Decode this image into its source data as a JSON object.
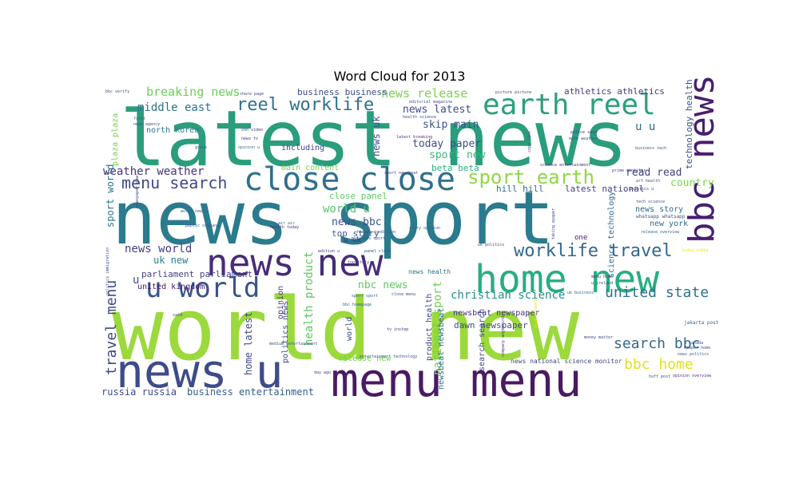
{
  "chart_data": {
    "type": "wordcloud",
    "title": "Word Cloud for 2013",
    "words": [
      {
        "text": "latest news",
        "color": "#2a9d7c"
      },
      {
        "text": "news sport",
        "color": "#2b7b8e"
      },
      {
        "text": "world new",
        "color": "#9bd93c"
      },
      {
        "text": "menu menu",
        "color": "#4a1a62"
      },
      {
        "text": "news u",
        "color": "#3d4c89"
      },
      {
        "text": "close close",
        "color": "#2e6f8e"
      },
      {
        "text": "home new",
        "color": "#28ae80"
      },
      {
        "text": "earth reel",
        "color": "#2ca07f"
      },
      {
        "text": "news new",
        "color": "#472c7a"
      },
      {
        "text": "bbc news",
        "color": "#481f70"
      },
      {
        "text": "u world",
        "color": "#3b528b"
      },
      {
        "text": "sport earth",
        "color": "#8fd744"
      },
      {
        "text": "reel worklife",
        "color": "#2c728e"
      },
      {
        "text": "menu search",
        "color": "#3e4a89"
      },
      {
        "text": "worklife travel",
        "color": "#31688e"
      },
      {
        "text": "united state",
        "color": "#2c728e"
      },
      {
        "text": "search bbc",
        "color": "#31688e"
      },
      {
        "text": "bbc home",
        "color": "#e0e31c"
      },
      {
        "text": "travel menu",
        "color": "#3e4989"
      },
      {
        "text": "christian science",
        "color": "#21908d"
      },
      {
        "text": "breaking news",
        "color": "#6ccd5a"
      },
      {
        "text": "news release",
        "color": "#7ad151"
      },
      {
        "text": "middle east",
        "color": "#2c728e"
      },
      {
        "text": "weather weather",
        "color": "#46337e"
      },
      {
        "text": "news world",
        "color": "#433e85"
      },
      {
        "text": "health product",
        "color": "#5ec962"
      },
      {
        "text": "national sport",
        "color": "#73d056"
      },
      {
        "text": "sport new",
        "color": "#35b779"
      },
      {
        "text": "today paper",
        "color": "#3d4e8a"
      },
      {
        "text": "news latest",
        "color": "#3e4c8a"
      },
      {
        "text": "skip main",
        "color": "#3c508b"
      },
      {
        "text": "news uk",
        "color": "#3a538b"
      },
      {
        "text": "read read",
        "color": "#414487"
      },
      {
        "text": "country",
        "color": "#7fd34e"
      },
      {
        "text": "world u",
        "color": "#52c569"
      },
      {
        "text": "news bbc",
        "color": "#3b528b"
      },
      {
        "text": "uk new",
        "color": "#26828e"
      },
      {
        "text": "nbc news",
        "color": "#5ec962"
      },
      {
        "text": "top story",
        "color": "#355f8d"
      },
      {
        "text": "close panel",
        "color": "#5ec962"
      },
      {
        "text": "hill hill",
        "color": "#2e6e8e"
      },
      {
        "text": "latest national",
        "color": "#404688"
      },
      {
        "text": "beta beta",
        "color": "#2ab07f"
      },
      {
        "text": "main content",
        "color": "#7ad151"
      },
      {
        "text": "including",
        "color": "#404588"
      },
      {
        "text": "business business",
        "color": "#3e4a89"
      },
      {
        "text": "athletics athletics",
        "color": "#46337e"
      },
      {
        "text": "technology health",
        "color": "#3b528b"
      },
      {
        "text": "news story",
        "color": "#31688e"
      },
      {
        "text": "new york",
        "color": "#2e6f8e"
      },
      {
        "text": "science technology",
        "color": "#2f6b8e"
      },
      {
        "text": "sport world",
        "color": "#2a768e"
      },
      {
        "text": "parliament parliament",
        "color": "#414487"
      },
      {
        "text": "united kingdom",
        "color": "#48186a"
      },
      {
        "text": "north korea",
        "color": "#2a788e"
      },
      {
        "text": "russia russia",
        "color": "#3e4c8a"
      },
      {
        "text": "business entertainment",
        "color": "#355e8d"
      },
      {
        "text": "home latest",
        "color": "#3e4a89"
      },
      {
        "text": "politics news",
        "color": "#3f4788"
      },
      {
        "text": "opinion",
        "color": "#443b84"
      },
      {
        "text": "world",
        "color": "#3b518b"
      },
      {
        "text": "newsbeat newsbeat",
        "color": "#2f6c8e"
      },
      {
        "text": "newsbeat newspaper",
        "color": "#46307e"
      },
      {
        "text": "dawn newspaper",
        "color": "#3c4f8a"
      },
      {
        "text": "search search",
        "color": "#3e4a89"
      },
      {
        "text": "product health",
        "color": "#3f4889"
      },
      {
        "text": "release new",
        "color": "#70cf57"
      },
      {
        "text": "news national science monitor",
        "color": "#404688"
      },
      {
        "text": "news health",
        "color": "#2b748e"
      },
      {
        "text": "skip content",
        "color": "#e5e419"
      },
      {
        "text": "one",
        "color": "#481a6c"
      },
      {
        "text": "u u",
        "color": "#31688e"
      },
      {
        "text": "u uk",
        "color": "#46307e"
      },
      {
        "text": "plaza plaza",
        "color": "#7ad151"
      },
      {
        "text": "u",
        "color": "#3b528b"
      },
      {
        "text": "panel close",
        "color": "#3a548c"
      },
      {
        "text": "sport sport",
        "color": "#355f8d"
      },
      {
        "text": "health condition",
        "color": "#365c8d"
      },
      {
        "text": "business sport",
        "color": "#3b528b"
      },
      {
        "text": "jakarta post",
        "color": "#355f8d"
      },
      {
        "text": "politics u",
        "color": "#46337e"
      },
      {
        "text": "tech science",
        "color": "#3b528b"
      },
      {
        "text": "whatsapp whatsapp",
        "color": "#3b528b"
      },
      {
        "text": "uk politics",
        "color": "#3e4a89"
      },
      {
        "text": "uk business",
        "color": "#2f6b8e"
      },
      {
        "text": "air air",
        "color": "#31688e"
      },
      {
        "text": "public company",
        "color": "#3b528b"
      },
      {
        "text": "health today",
        "color": "#46337e"
      },
      {
        "text": "story opinion",
        "color": "#355f8d"
      },
      {
        "text": "news agency",
        "color": "#3b528b"
      },
      {
        "text": "cnn video",
        "color": "#46337e"
      },
      {
        "text": "opinion u",
        "color": "#2f6c8e"
      },
      {
        "text": "share page",
        "color": "#3e4a89"
      },
      {
        "text": "sport newsbeat",
        "color": "#433e85"
      },
      {
        "text": "police said",
        "color": "#46337e"
      },
      {
        "text": "male weather",
        "color": "#3b528b"
      },
      {
        "text": "business tech",
        "color": "#355f8d"
      },
      {
        "text": "science entertainment",
        "color": "#46337e"
      },
      {
        "text": "prime minister",
        "color": "#3e4a89"
      },
      {
        "text": "art health",
        "color": "#3b528b"
      },
      {
        "text": "release overview",
        "color": "#355f8d"
      },
      {
        "text": "india india",
        "color": "#e5e419"
      },
      {
        "text": "u ireland",
        "color": "#3b528b"
      },
      {
        "text": "money matter",
        "color": "#3e4a89"
      },
      {
        "text": "epaper home",
        "color": "#3b528b"
      },
      {
        "text": "u canada",
        "color": "#3b528b"
      },
      {
        "text": "news politics",
        "color": "#355f8d"
      },
      {
        "text": "opinion overview",
        "color": "#46337e"
      },
      {
        "text": "huff post",
        "color": "#3b528b"
      },
      {
        "text": "close menu",
        "color": "#3e4a89"
      },
      {
        "text": "menu home",
        "color": "#46337e"
      },
      {
        "text": "bbc homepage",
        "color": "#31688e"
      },
      {
        "text": "entertainment technology",
        "color": "#3b528b"
      },
      {
        "text": "top story",
        "color": "#3b528b"
      },
      {
        "text": "edition u",
        "color": "#46337e"
      },
      {
        "text": "said",
        "color": "#3e4a89"
      },
      {
        "text": "world news",
        "color": "#355f8d"
      },
      {
        "text": "first",
        "color": "#3b528b"
      },
      {
        "text": "news tv",
        "color": "#46337e"
      },
      {
        "text": "newspaper dawn",
        "color": "#3e4a89"
      },
      {
        "text": "politics immigration",
        "color": "#3b528b"
      },
      {
        "text": "latest breaking",
        "color": "#46337e"
      },
      {
        "text": "health science",
        "color": "#3b528b"
      },
      {
        "text": "picture picture",
        "color": "#3e4a89"
      },
      {
        "text": "editorial magazine",
        "color": "#3b528b"
      },
      {
        "text": "taking epaper",
        "color": "#3e4a89"
      },
      {
        "text": "tv instep",
        "color": "#46337e"
      },
      {
        "text": "group",
        "color": "#3b528b"
      },
      {
        "text": "copy link",
        "color": "#3e4a89"
      },
      {
        "text": "company anglohindy",
        "color": "#46337e"
      },
      {
        "text": "bbc verify",
        "color": "#3b528b"
      },
      {
        "text": "day ago",
        "color": "#3e4a89"
      },
      {
        "text": "medium entertainment",
        "color": "#3b528b"
      }
    ]
  }
}
